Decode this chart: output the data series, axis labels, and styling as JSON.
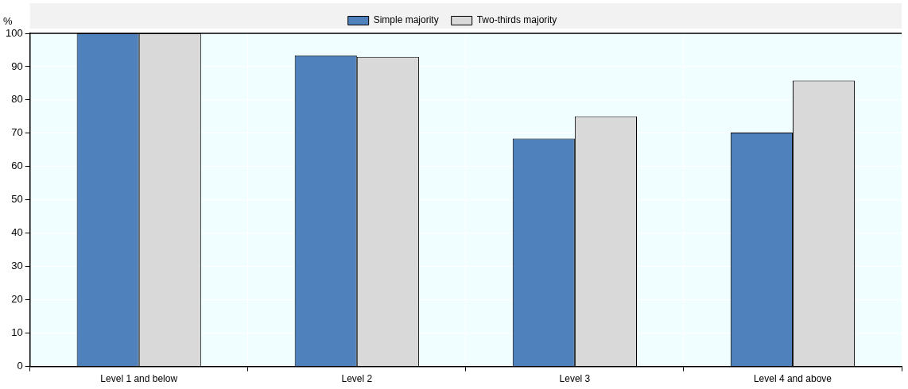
{
  "chart_data": {
    "type": "bar",
    "ylabel": "%",
    "categories": [
      "Level 1 and below",
      "Level 2",
      "Level 3",
      "Level 4 and above"
    ],
    "series": [
      {
        "name": "Simple majority",
        "color": "#4f81bd",
        "values": [
          100,
          93.4,
          68.4,
          70.2
        ]
      },
      {
        "name": "Two-thirds majority",
        "color": "#d9d9d9",
        "values": [
          100,
          92.9,
          75.1,
          85.8
        ]
      }
    ],
    "ylim": [
      0,
      100
    ],
    "yticks": [
      0,
      10,
      20,
      30,
      40,
      50,
      60,
      70,
      80,
      90,
      100
    ],
    "grid": true,
    "legend": "top"
  }
}
